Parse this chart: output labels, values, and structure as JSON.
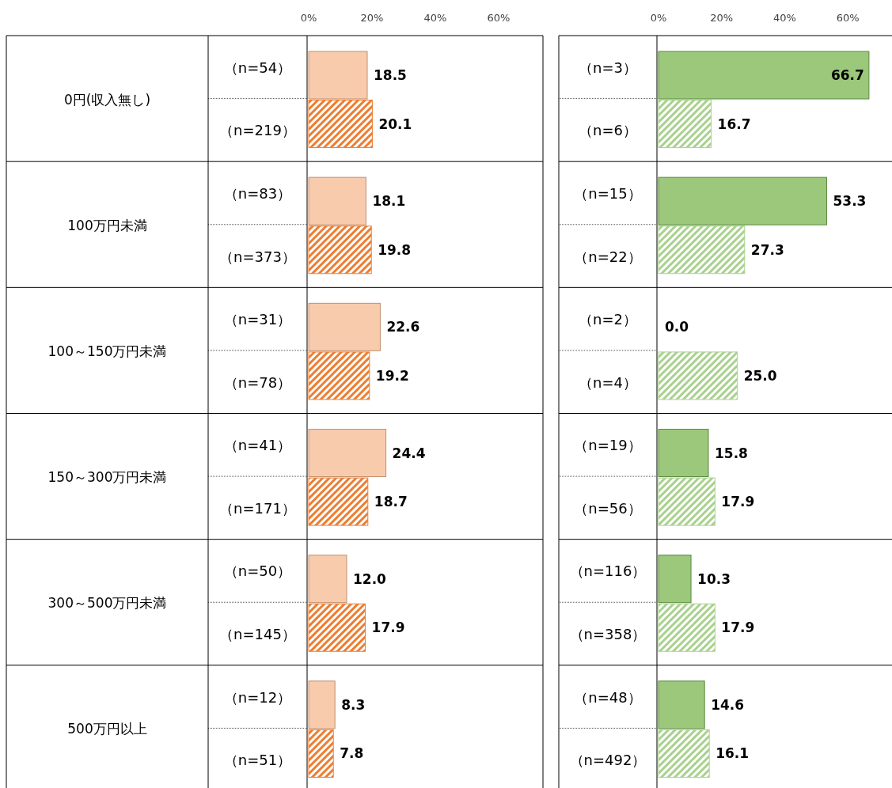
{
  "chart_data": [
    {
      "type": "bar",
      "orientation": "horizontal",
      "categories": [
        "（n=54）",
        "（n=219）",
        "（n=83）",
        "（n=373）",
        "（n=31）",
        "（n=78）",
        "（n=41）",
        "（n=171）",
        "（n=50）",
        "（n=145）",
        "（n=12）",
        "（n=51）"
      ],
      "series": [
        {
          "color": "#f8cbad",
          "values": [
            18.5,
            null,
            18.1,
            null,
            22.6,
            null,
            24.4,
            null,
            12.0,
            null,
            8.3,
            null
          ],
          "value_labels": [
            "18.5",
            null,
            "18.1",
            null,
            "22.6",
            null,
            "24.4",
            null,
            "12.0",
            null,
            "8.3",
            null
          ]
        },
        {
          "color": "#ed7d31",
          "values": [
            null,
            20.1,
            null,
            19.8,
            null,
            19.2,
            null,
            18.7,
            null,
            17.9,
            null,
            7.8
          ],
          "value_labels": [
            null,
            "20.1",
            null,
            "19.8",
            null,
            "19.2",
            null,
            "18.7",
            null,
            "17.9",
            null,
            "7.8"
          ]
        }
      ],
      "xlim": [
        0,
        74
      ],
      "xticks": [
        {
          "value": 0,
          "label": "0%"
        },
        {
          "value": 20,
          "label": "20%"
        },
        {
          "value": 40,
          "label": "40%"
        },
        {
          "value": 60,
          "label": "60%"
        }
      ],
      "annotations": [
        "0円(収入無し)",
        "100万円未満",
        "100～150万円未満",
        "150～300万円未満",
        "300～500万円未満",
        "500万円以上"
      ]
    },
    {
      "type": "bar",
      "orientation": "horizontal",
      "categories": [
        "（n=3）",
        "（n=6）",
        "（n=15）",
        "（n=22）",
        "（n=2）",
        "（n=4）",
        "（n=19）",
        "（n=56）",
        "（n=116）",
        "（n=358）",
        "（n=48）",
        "（n=492）"
      ],
      "series": [
        {
          "color": "#9bc87a",
          "values": [
            66.7,
            null,
            53.3,
            null,
            0.0,
            null,
            15.8,
            null,
            10.3,
            null,
            14.6,
            null
          ],
          "value_labels": [
            "66.7",
            null,
            "53.3",
            null,
            "0.0",
            null,
            "15.8",
            null,
            "10.3",
            null,
            "14.6",
            null
          ]
        },
        {
          "color": "#a9d18e",
          "values": [
            null,
            16.7,
            null,
            27.3,
            null,
            25.0,
            null,
            17.9,
            null,
            17.9,
            null,
            16.1
          ],
          "value_labels": [
            null,
            "16.7",
            null,
            "27.3",
            null,
            "25.0",
            null,
            "17.9",
            null,
            "17.9",
            null,
            "16.1"
          ]
        }
      ],
      "xlim": [
        0,
        74
      ],
      "xticks": [
        {
          "value": 0,
          "label": "0%"
        },
        {
          "value": 20,
          "label": "20%"
        },
        {
          "value": 40,
          "label": "40%"
        },
        {
          "value": 60,
          "label": "60%"
        }
      ]
    }
  ]
}
